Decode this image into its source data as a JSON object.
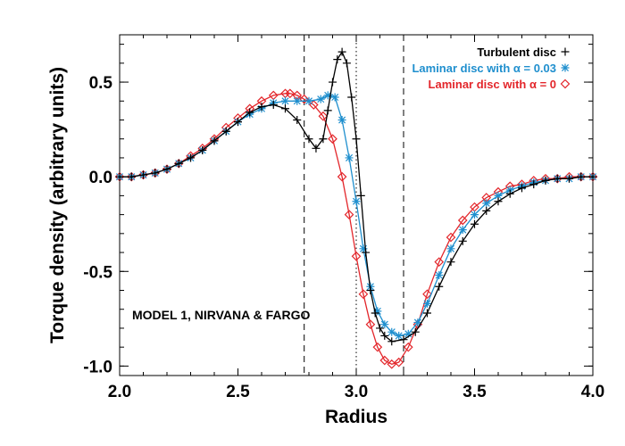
{
  "chart_data": {
    "type": "line",
    "xlabel": "Radius",
    "ylabel": "Torque density (arbitrary units)",
    "xlim": [
      2.0,
      4.0
    ],
    "ylim": [
      -1.05,
      0.75
    ],
    "xticks": [
      2.0,
      2.5,
      3.0,
      3.5,
      4.0
    ],
    "xtick_labels": [
      "2.0",
      "2.5",
      "3.0",
      "3.5",
      "4.0"
    ],
    "yticks": [
      0.5,
      0.0,
      -0.5,
      -1.0
    ],
    "ytick_labels": [
      "0.5",
      "0.0",
      "-0.5",
      "-1.0"
    ],
    "annotation": "MODEL 1, NIRVANA & FARGO",
    "legend_position": "top-right",
    "vlines": [
      {
        "x": 2.78,
        "style": "dashed"
      },
      {
        "x": 3.0,
        "style": "dotted"
      },
      {
        "x": 3.2,
        "style": "dashed"
      }
    ],
    "series": [
      {
        "name": "Turbulent disc",
        "marker": "+",
        "color": "#000000",
        "x": [
          2.0,
          2.05,
          2.1,
          2.15,
          2.2,
          2.25,
          2.3,
          2.35,
          2.4,
          2.45,
          2.5,
          2.55,
          2.6,
          2.65,
          2.7,
          2.75,
          2.8,
          2.83,
          2.86,
          2.88,
          2.9,
          2.92,
          2.94,
          2.96,
          2.98,
          3.0,
          3.02,
          3.04,
          3.06,
          3.08,
          3.1,
          3.12,
          3.15,
          3.2,
          3.25,
          3.3,
          3.35,
          3.4,
          3.45,
          3.5,
          3.55,
          3.6,
          3.65,
          3.7,
          3.75,
          3.8,
          3.85,
          3.9,
          3.95,
          4.0
        ],
        "y": [
          0.0,
          0.0,
          0.01,
          0.02,
          0.04,
          0.07,
          0.1,
          0.14,
          0.19,
          0.24,
          0.29,
          0.34,
          0.37,
          0.38,
          0.36,
          0.3,
          0.2,
          0.15,
          0.2,
          0.35,
          0.5,
          0.62,
          0.66,
          0.6,
          0.42,
          0.2,
          -0.1,
          -0.4,
          -0.6,
          -0.72,
          -0.8,
          -0.84,
          -0.87,
          -0.86,
          -0.82,
          -0.72,
          -0.58,
          -0.45,
          -0.34,
          -0.25,
          -0.18,
          -0.13,
          -0.09,
          -0.06,
          -0.04,
          -0.02,
          -0.01,
          -0.01,
          0.0,
          0.0
        ]
      },
      {
        "name": "Laminar disc with α = 0.03",
        "marker": "*",
        "color": "#1f8fce",
        "x": [
          2.0,
          2.05,
          2.1,
          2.15,
          2.2,
          2.25,
          2.3,
          2.35,
          2.4,
          2.45,
          2.5,
          2.55,
          2.6,
          2.65,
          2.7,
          2.75,
          2.8,
          2.85,
          2.88,
          2.91,
          2.94,
          2.97,
          3.0,
          3.03,
          3.06,
          3.09,
          3.12,
          3.15,
          3.18,
          3.22,
          3.26,
          3.3,
          3.35,
          3.4,
          3.45,
          3.5,
          3.55,
          3.6,
          3.65,
          3.7,
          3.75,
          3.8,
          3.85,
          3.9,
          3.95,
          4.0
        ],
        "y": [
          0.0,
          0.0,
          0.01,
          0.02,
          0.04,
          0.07,
          0.1,
          0.14,
          0.19,
          0.24,
          0.29,
          0.33,
          0.36,
          0.39,
          0.4,
          0.4,
          0.4,
          0.41,
          0.43,
          0.42,
          0.3,
          0.1,
          -0.13,
          -0.38,
          -0.58,
          -0.71,
          -0.78,
          -0.82,
          -0.84,
          -0.83,
          -0.77,
          -0.67,
          -0.52,
          -0.38,
          -0.28,
          -0.2,
          -0.14,
          -0.1,
          -0.07,
          -0.05,
          -0.03,
          -0.02,
          -0.01,
          -0.01,
          0.0,
          0.0
        ]
      },
      {
        "name": "Laminar disc with α = 0",
        "marker": "◇",
        "color": "#e3262b",
        "x": [
          2.0,
          2.05,
          2.1,
          2.15,
          2.2,
          2.25,
          2.3,
          2.35,
          2.4,
          2.45,
          2.5,
          2.55,
          2.6,
          2.65,
          2.7,
          2.72,
          2.75,
          2.78,
          2.82,
          2.86,
          2.9,
          2.94,
          2.97,
          3.0,
          3.03,
          3.06,
          3.09,
          3.12,
          3.15,
          3.18,
          3.22,
          3.26,
          3.3,
          3.35,
          3.4,
          3.45,
          3.5,
          3.55,
          3.6,
          3.65,
          3.7,
          3.75,
          3.8,
          3.85,
          3.9,
          3.95,
          4.0
        ],
        "y": [
          0.0,
          0.0,
          0.01,
          0.02,
          0.04,
          0.07,
          0.11,
          0.15,
          0.2,
          0.26,
          0.31,
          0.36,
          0.4,
          0.43,
          0.44,
          0.44,
          0.43,
          0.41,
          0.38,
          0.32,
          0.2,
          0.0,
          -0.2,
          -0.42,
          -0.62,
          -0.78,
          -0.9,
          -0.97,
          -0.99,
          -0.98,
          -0.9,
          -0.78,
          -0.62,
          -0.45,
          -0.32,
          -0.23,
          -0.16,
          -0.11,
          -0.08,
          -0.05,
          -0.04,
          -0.02,
          -0.01,
          -0.01,
          0.0,
          0.0,
          0.0
        ]
      }
    ]
  }
}
